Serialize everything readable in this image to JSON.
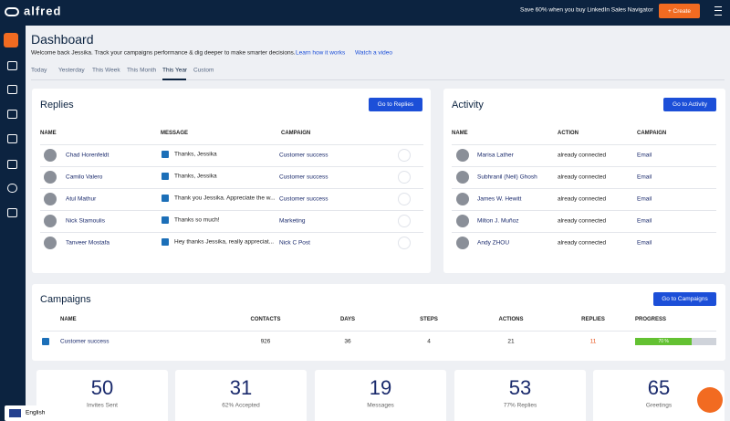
{
  "header": {
    "logo": "alfred",
    "promo": "Save 60% when you buy LinkedIn Sales Navigator",
    "create_button": "+ Create"
  },
  "page": {
    "title": "Dashboard",
    "subtitle": "Welcome back Jessika. Track your campaigns performance & dig deeper to make smarter decisions.",
    "links": [
      "Learn how it works",
      "Watch a video"
    ],
    "tabs": [
      "Today",
      "Yesterday",
      "This Week",
      "This Month",
      "This Year",
      "Custom"
    ],
    "active_tab": "This Year"
  },
  "replies": {
    "title": "Replies",
    "button": "Go to Replies",
    "columns": [
      "NAME",
      "MESSAGE",
      "CAMPAIGN"
    ],
    "rows": [
      {
        "name": "Chad Horenfeldt",
        "message": "Thanks, Jessika",
        "campaign": "Customer success"
      },
      {
        "name": "Camilo Valero",
        "message": "Thanks, Jessika",
        "campaign": "Customer success"
      },
      {
        "name": "Atul Mathur",
        "message": "Thank you Jessika. Appreciate the w...",
        "campaign": "Customer success"
      },
      {
        "name": "Nick Stamoulis",
        "message": "Thanks so much!",
        "campaign": "Marketing"
      },
      {
        "name": "Tanveer Mostafa",
        "message": "Hey thanks Jessika, really appreciat...",
        "campaign": "Nick C Post"
      }
    ]
  },
  "activity": {
    "title": "Activity",
    "button": "Go to Activity",
    "columns": [
      "NAME",
      "ACTION",
      "CAMPAIGN"
    ],
    "rows": [
      {
        "name": "Marisa Lather",
        "action": "already connected",
        "campaign": "Email"
      },
      {
        "name": "Subhranil (Neil) Ghosh",
        "action": "already connected",
        "campaign": "Email"
      },
      {
        "name": "James W. Hewitt",
        "action": "already connected",
        "campaign": "Email"
      },
      {
        "name": "Milton J. Muñoz",
        "action": "already connected",
        "campaign": "Email"
      },
      {
        "name": "Andy ZHOU",
        "action": "already connected",
        "campaign": "Email"
      }
    ]
  },
  "campaigns": {
    "title": "Campaigns",
    "button": "Go to Campaigns",
    "columns": [
      "NAME",
      "CONTACTS",
      "DAYS",
      "STEPS",
      "ACTIONS",
      "REPLIES",
      "PROGRESS"
    ],
    "rows": [
      {
        "name": "Customer success",
        "contacts": 926,
        "days": 36,
        "steps": 4,
        "actions": 21,
        "replies": 11,
        "progress": 70,
        "progress_label": "70 %"
      }
    ]
  },
  "stats": [
    {
      "value": 50,
      "label": "Invites Sent"
    },
    {
      "value": 31,
      "label": "62% Accepted"
    },
    {
      "value": 19,
      "label": "Messages"
    },
    {
      "value": 53,
      "label": "77% Replies"
    },
    {
      "value": 65,
      "label": "Greetings"
    }
  ],
  "language": "English"
}
